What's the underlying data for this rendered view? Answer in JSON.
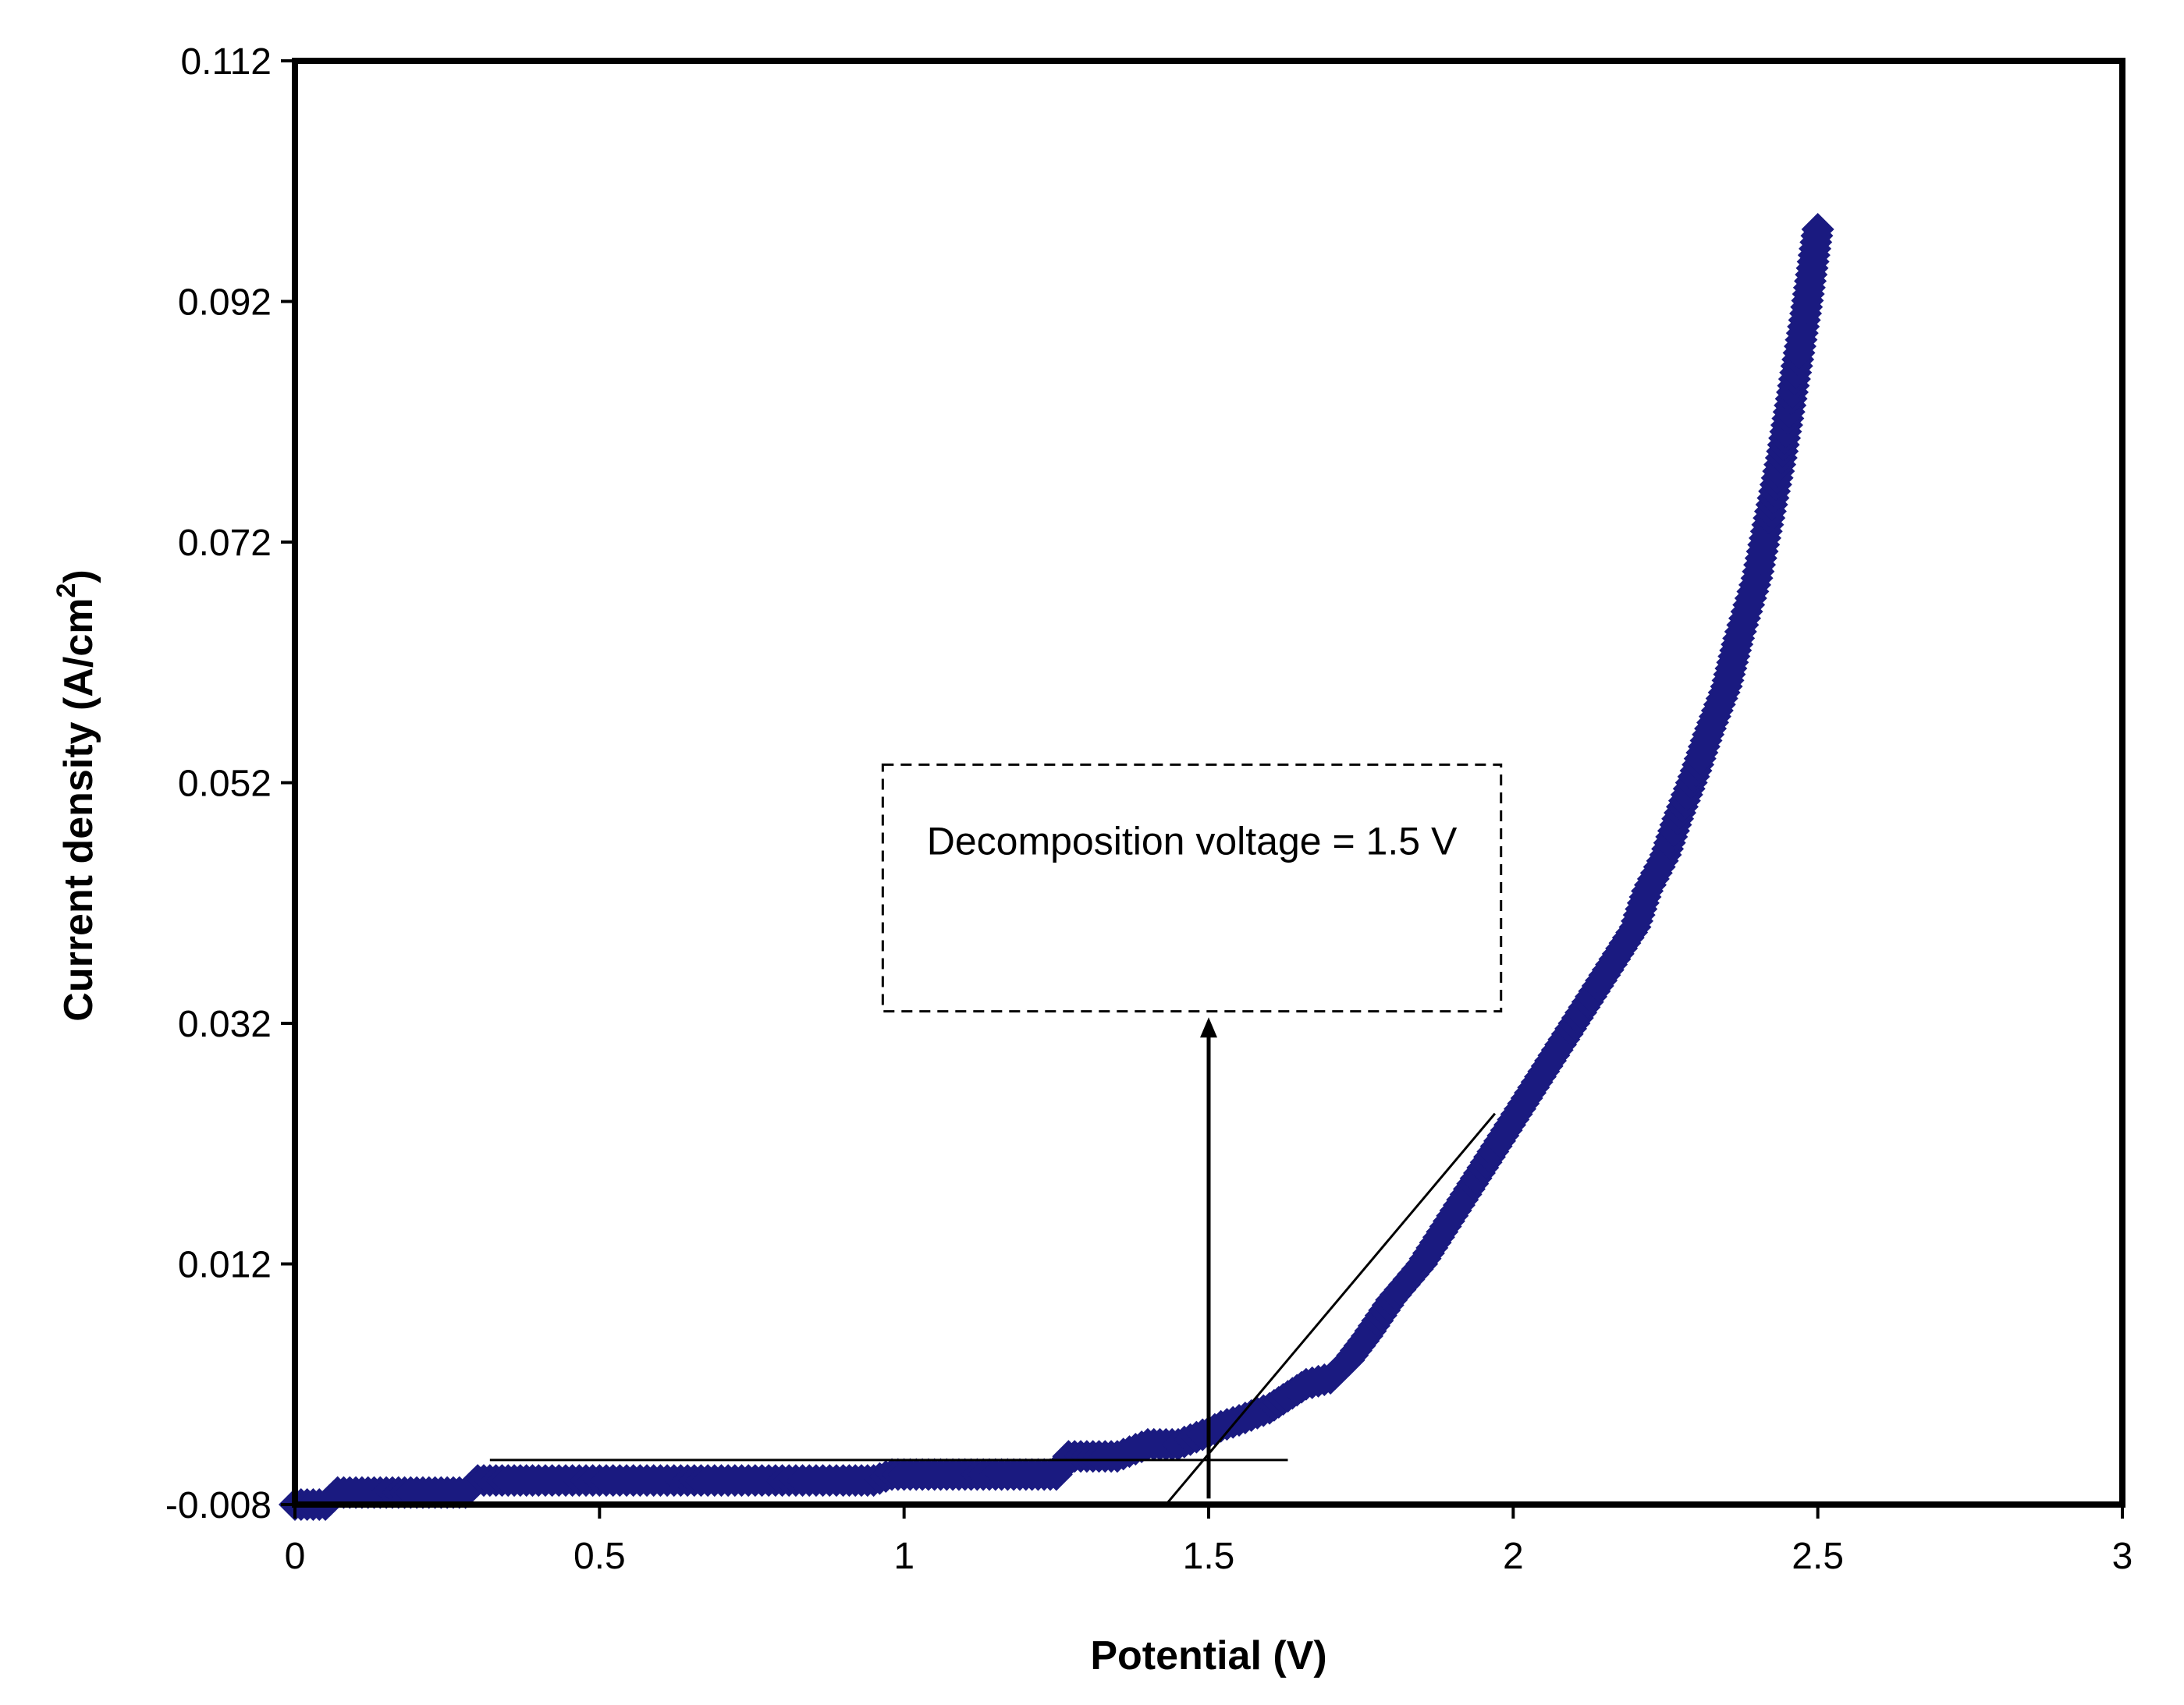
{
  "chart_data": {
    "type": "scatter",
    "title": "",
    "xlabel": "Potential (V)",
    "ylabel_main": "Current density (A/cm",
    "ylabel_sup": "2",
    "ylabel_close": ")",
    "xlim": [
      0,
      3
    ],
    "ylim": [
      -0.008,
      0.112
    ],
    "xticks": [
      0,
      0.5,
      1,
      1.5,
      2,
      2.5,
      3
    ],
    "xtick_labels": [
      "0",
      "0.5",
      "1",
      "1.5",
      "2",
      "2.5",
      "3"
    ],
    "yticks": [
      -0.008,
      0.012,
      0.032,
      0.052,
      0.072,
      0.092,
      0.112
    ],
    "ytick_labels": [
      "-0.008",
      "0.012",
      "0.032",
      "0.052",
      "0.072",
      "0.092",
      "0.112"
    ],
    "grid": false,
    "marker": "diamond",
    "series": [
      {
        "name": "Current density",
        "color": "#1a1a80",
        "x": [
          0.0,
          0.02,
          0.05,
          0.07,
          0.1,
          0.15,
          0.2,
          0.25,
          0.28,
          0.3,
          0.32,
          0.35,
          0.4,
          0.5,
          0.6,
          0.7,
          0.8,
          0.9,
          0.95,
          0.98,
          1.0,
          1.05,
          1.1,
          1.15,
          1.2,
          1.25,
          1.27,
          1.3,
          1.35,
          1.4,
          1.42,
          1.45,
          1.5,
          1.52,
          1.55,
          1.6,
          1.63,
          1.66,
          1.7,
          1.73,
          1.76,
          1.8,
          1.85,
          1.9,
          1.95,
          2.0,
          2.05,
          2.1,
          2.15,
          2.2,
          2.22,
          2.25,
          2.27,
          2.3,
          2.32,
          2.35,
          2.37,
          2.4,
          2.42,
          2.44,
          2.46,
          2.48,
          2.5
        ],
        "y": [
          -0.008,
          -0.008,
          -0.008,
          -0.007,
          -0.007,
          -0.007,
          -0.007,
          -0.007,
          -0.007,
          -0.006,
          -0.006,
          -0.006,
          -0.006,
          -0.006,
          -0.006,
          -0.006,
          -0.006,
          -0.006,
          -0.006,
          -0.0055,
          -0.0055,
          -0.0055,
          -0.0055,
          -0.0055,
          -0.0055,
          -0.0055,
          -0.004,
          -0.004,
          -0.004,
          -0.003,
          -0.003,
          -0.003,
          -0.002,
          -0.0015,
          -0.001,
          0.0,
          0.001,
          0.002,
          0.0025,
          0.004,
          0.006,
          0.009,
          0.012,
          0.016,
          0.02,
          0.024,
          0.028,
          0.032,
          0.036,
          0.04,
          0.043,
          0.046,
          0.049,
          0.053,
          0.056,
          0.06,
          0.064,
          0.069,
          0.074,
          0.079,
          0.085,
          0.091,
          0.098
        ]
      }
    ],
    "annotations": {
      "box_text": "Decomposition voltage = 1.5 V",
      "box_x": [
        0.965,
        1.98
      ],
      "box_y": [
        0.033,
        0.0535
      ],
      "arrow_x": 1.5,
      "arrow_y": [
        -0.0075,
        0.0325
      ],
      "baseline_x": [
        0.32,
        1.63
      ],
      "baseline_y": -0.0043,
      "tangent_x": [
        1.43,
        1.97
      ],
      "tangent_y": [
        -0.008,
        0.0245
      ]
    }
  }
}
